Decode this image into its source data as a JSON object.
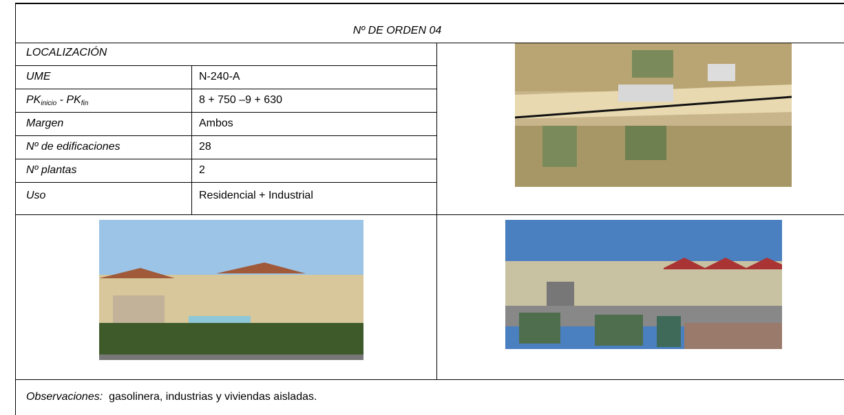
{
  "header": {
    "title": "Nº DE ORDEN 04"
  },
  "table": {
    "section": "LOCALIZACIÓN",
    "rows": [
      [
        "UME",
        "N-240-A"
      ],
      [
        [
          "PK",
          "inicio",
          " - PK",
          "fin"
        ],
        "8 + 750 –9 + 630"
      ],
      [
        "Margen",
        "Ambos"
      ],
      [
        "Nº de edificaciones",
        "28"
      ],
      [
        "Nº plantas",
        "2"
      ],
      [
        "Uso",
        "Residencial + Industrial"
      ]
    ]
  },
  "observations": {
    "label": "Observaciones:",
    "text": "gasolinera, industrias y viviendas aisladas."
  }
}
